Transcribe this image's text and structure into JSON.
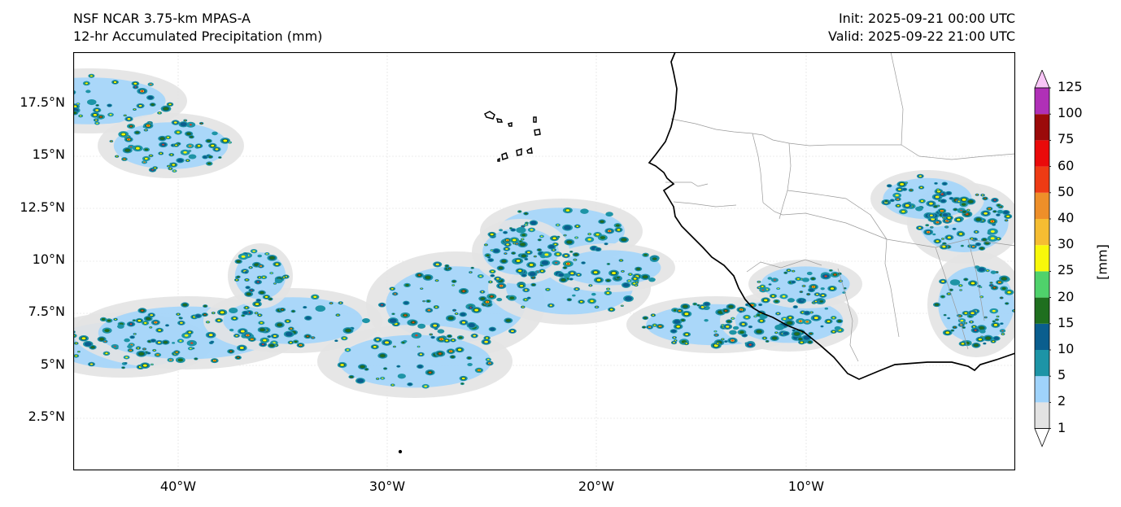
{
  "header": {
    "model": "NSF NCAR 3.75-km MPAS-A",
    "field": "12-hr Accumulated Precipitation (mm)",
    "init": "Init: 2025-09-21 00:00 UTC",
    "valid": "Valid: 2025-09-22 21:00 UTC"
  },
  "map": {
    "extent_lon": [
      -45.0,
      0.0
    ],
    "extent_lat": [
      0.0,
      20.0
    ],
    "lat_ticks": [
      "17.5°N",
      "15°N",
      "12.5°N",
      "10°N",
      "7.5°N",
      "5°N",
      "2.5°N"
    ],
    "lon_ticks": [
      "40°W",
      "30°W",
      "20°W",
      "10°W"
    ],
    "land_color": "#ffffff",
    "coast_color": "#000000",
    "border_color": "#9a9a9a"
  },
  "colorbar": {
    "unit": "[mm]",
    "levels": [
      "1",
      "2",
      "5",
      "10",
      "15",
      "20",
      "25",
      "30",
      "40",
      "50",
      "60",
      "75",
      "100",
      "125"
    ],
    "colors": [
      "#e3e3e3",
      "#9fd3fb",
      "#1d94a6",
      "#0a5e8e",
      "#1f6f1f",
      "#4fd26b",
      "#f8f80a",
      "#f5bd32",
      "#ee8f29",
      "#ee3b14",
      "#ea0a0a",
      "#9b0a0a",
      "#b030b7",
      "#f9c6f7"
    ]
  }
}
